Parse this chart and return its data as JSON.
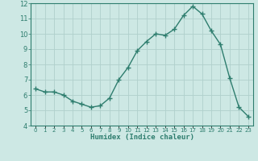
{
  "x": [
    0,
    1,
    2,
    3,
    4,
    5,
    6,
    7,
    8,
    9,
    10,
    11,
    12,
    13,
    14,
    15,
    16,
    17,
    18,
    19,
    20,
    21,
    22,
    23
  ],
  "y": [
    6.4,
    6.2,
    6.2,
    6.0,
    5.6,
    5.4,
    5.2,
    5.3,
    5.8,
    7.0,
    7.8,
    8.9,
    9.5,
    10.0,
    9.9,
    10.3,
    11.2,
    11.8,
    11.3,
    10.2,
    9.3,
    7.1,
    5.2,
    4.6
  ],
  "xlabel": "Humidex (Indice chaleur)",
  "ylim": [
    4,
    12
  ],
  "xlim": [
    -0.5,
    23.5
  ],
  "yticks": [
    4,
    5,
    6,
    7,
    8,
    9,
    10,
    11,
    12
  ],
  "xtick_labels": [
    "0",
    "1",
    "2",
    "3",
    "4",
    "5",
    "6",
    "7",
    "8",
    "9",
    "10",
    "11",
    "12",
    "13",
    "14",
    "15",
    "16",
    "17",
    "18",
    "19",
    "20",
    "21",
    "22",
    "23"
  ],
  "line_color": "#2e7d6e",
  "marker_color": "#2e7d6e",
  "bg_color": "#cde8e4",
  "grid_color": "#b0d0cc",
  "xlabel_color": "#2e7d6e",
  "tick_color": "#2e7d6e"
}
